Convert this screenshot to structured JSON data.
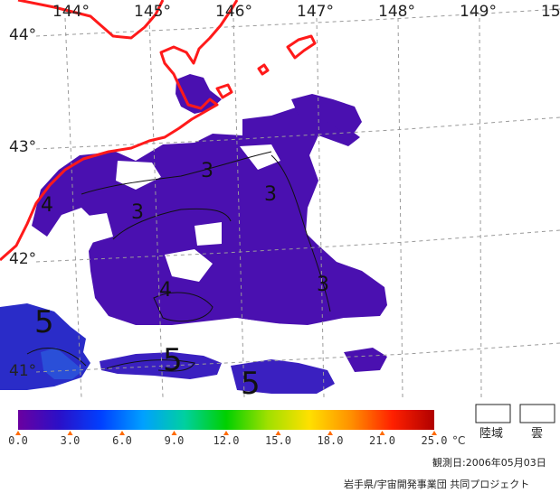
{
  "map": {
    "longitude_labels": [
      "144°",
      "145°",
      "146°",
      "147°",
      "148°",
      "149°",
      "15"
    ],
    "latitude_labels": [
      "44°",
      "43°",
      "42°",
      "41°"
    ],
    "contour_labels": [
      "3",
      "3",
      "3",
      "3",
      "4",
      "4",
      "5",
      "5",
      "5"
    ],
    "colors": {
      "coastline": "#ff1a1a",
      "graticule": "#9a9a9a",
      "ocean_cold": "#4a10b0",
      "ocean_warm": "#1c3ccc",
      "contour": "#111111",
      "no_data": "#ffffff"
    }
  },
  "legend": {
    "tick_labels": [
      "0.0",
      "3.0",
      "6.0",
      "9.0",
      "12.0",
      "15.0",
      "18.0",
      "21.0",
      "25.0"
    ],
    "unit": "°C",
    "min": 0,
    "max": 25,
    "colormap": [
      "#6a00a0",
      "#2a10c8",
      "#0040ff",
      "#00a0ff",
      "#00d0a0",
      "#00d000",
      "#a0e000",
      "#ffe000",
      "#ff9000",
      "#ff2000",
      "#b00000"
    ],
    "land_label": "陸域",
    "cloud_label": "雲"
  },
  "footer": {
    "observation_date": "観測日:2006年05月03日",
    "credit": "岩手県/宇宙開発事業団 共同プロジェクト"
  }
}
